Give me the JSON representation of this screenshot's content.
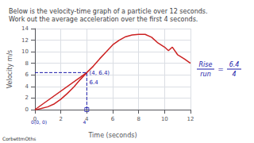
{
  "chart_data": {
    "type": "line",
    "title": "Below is the velocity-time graph of a particle over 12 seconds.\nWork out the average acceleration over the first 4 seconds.",
    "xlabel": "Time (seconds)",
    "ylabel": "Velocity m/s",
    "xlim": [
      0,
      12
    ],
    "ylim": [
      0,
      14
    ],
    "xticks": [
      0,
      2,
      4,
      6,
      8,
      10,
      12
    ],
    "yticks": [
      0,
      2,
      4,
      6,
      8,
      10,
      12,
      14
    ],
    "grid": true,
    "series": [
      {
        "x": [
          0,
          0.2,
          0.5,
          1.0,
          1.5,
          2.0,
          2.5,
          3.0,
          3.5,
          4.0,
          4.5,
          5.0,
          5.5,
          6.0,
          6.5,
          7.0,
          7.5,
          8.0,
          8.5,
          9.0,
          9.5,
          10.0,
          10.3,
          10.6,
          11.0,
          11.5,
          12.0
        ],
        "values": [
          0,
          0.05,
          0.2,
          0.5,
          1.0,
          1.8,
          2.8,
          3.9,
          5.2,
          6.4,
          7.5,
          8.8,
          10.0,
          11.2,
          12.0,
          12.6,
          12.9,
          13.0,
          13.0,
          12.5,
          11.5,
          10.8,
          10.2,
          10.8,
          9.5,
          8.8,
          8.0
        ],
        "color": "#cc2222"
      },
      {
        "x": [
          0,
          4
        ],
        "values": [
          0,
          6.4
        ],
        "color": "#cc2222"
      },
      {
        "x": [
          4,
          4
        ],
        "values": [
          0,
          6.4
        ],
        "color": "#1a1aaa",
        "line_style": "dashed"
      },
      {
        "x": [
          0,
          4
        ],
        "values": [
          6.4,
          6.4
        ],
        "color": "#1a1aaa",
        "line_style": "dashed"
      },
      {
        "type": "scatter",
        "x": [
          4
        ],
        "values": [
          0
        ],
        "color": "#1a1aaa",
        "marker": "square"
      }
    ],
    "annotations": [
      {
        "text": "(4, 6.4)",
        "x": 4.2,
        "y": 5.8,
        "color": "#1a1aaa"
      },
      {
        "text": "6.4",
        "x": 4.2,
        "y": 4.2,
        "color": "#1a1aaa"
      },
      {
        "text": "0(0, 0)",
        "x": -0.3,
        "y": -2.0,
        "color": "#1a1aaa"
      },
      {
        "text": "4",
        "x": 3.7,
        "y": -3.2,
        "color": "#1a1aaa"
      },
      {
        "text": "Rise",
        "color": "#1a1aaa"
      },
      {
        "text": "run",
        "color": "#1a1aaa"
      },
      {
        "text": "=",
        "color": "#1a1aaa"
      },
      {
        "text": "6.4",
        "color": "#1a1aaa"
      },
      {
        "text": "4",
        "color": "#1a1aaa"
      },
      {
        "text": "CorbettmOths"
      }
    ]
  }
}
